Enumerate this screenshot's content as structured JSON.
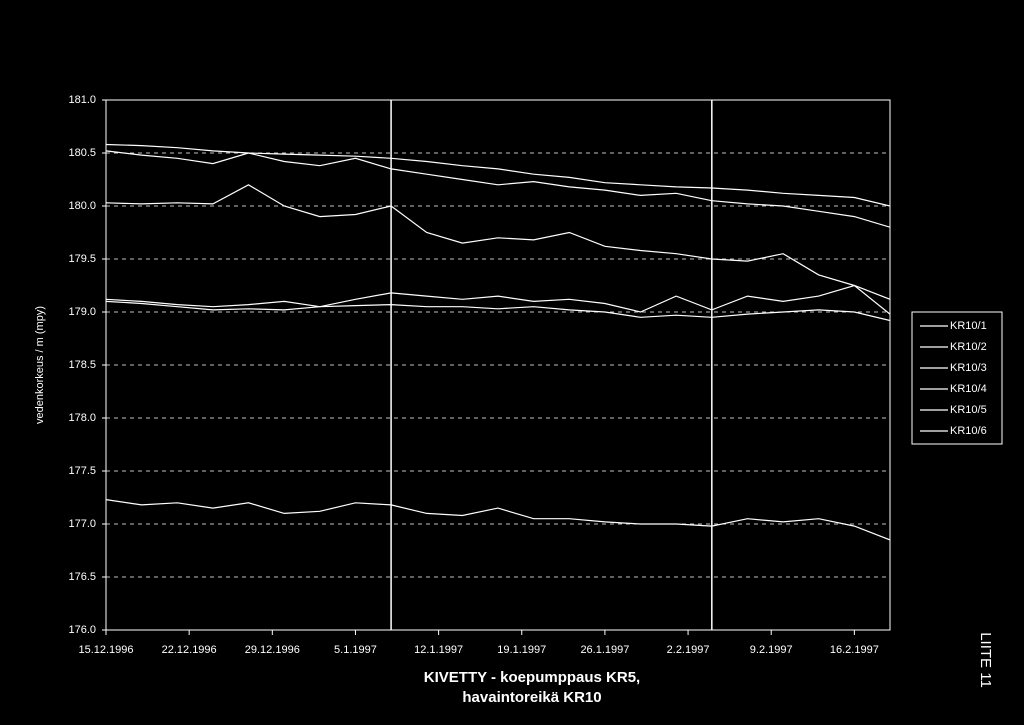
{
  "chart_data": {
    "type": "line",
    "title": "KIVETTY - koepumppaus KR5,",
    "subtitle": "havaintoreikä KR10",
    "y_label": "vedenkorkeus / m (mpy)",
    "side_label": "LIITE 11",
    "x": [
      "1996-12-15",
      "1996-12-18",
      "1996-12-21",
      "1996-12-24",
      "1996-12-27",
      "1996-12-30",
      "1997-01-02",
      "1997-01-05",
      "1997-01-08",
      "1997-01-11",
      "1997-01-14",
      "1997-01-17",
      "1997-01-20",
      "1997-01-23",
      "1997-01-26",
      "1997-01-29",
      "1997-02-01",
      "1997-02-04",
      "1997-02-07",
      "1997-02-10",
      "1997-02-13",
      "1997-02-16",
      "1997-02-19"
    ],
    "xlim": [
      "1996-12-15",
      "1997-02-19"
    ],
    "xticks": [
      {
        "value": "1996-12-15",
        "label": "15.12.1996"
      },
      {
        "value": "1996-12-22",
        "label": "22.12.1996"
      },
      {
        "value": "1996-12-29",
        "label": "29.12.1996"
      },
      {
        "value": "1997-01-05",
        "label": "5.1.1997"
      },
      {
        "value": "1997-01-12",
        "label": "12.1.1997"
      },
      {
        "value": "1997-01-19",
        "label": "19.1.1997"
      },
      {
        "value": "1997-01-26",
        "label": "26.1.1997"
      },
      {
        "value": "1997-02-02",
        "label": "2.2.1997"
      },
      {
        "value": "1997-02-09",
        "label": "9.2.1997"
      },
      {
        "value": "1997-02-16",
        "label": "16.2.1997"
      }
    ],
    "vlines": [
      "1997-01-08",
      "1997-02-04"
    ],
    "ylim": [
      176,
      181
    ],
    "yticks": [
      {
        "value": 176,
        "label": "176.0"
      },
      {
        "value": 176.5,
        "label": "176.5"
      },
      {
        "value": 177,
        "label": "177.0"
      },
      {
        "value": 177.5,
        "label": "177.5"
      },
      {
        "value": 178,
        "label": "178.0"
      },
      {
        "value": 178.5,
        "label": "178.5"
      },
      {
        "value": 179,
        "label": "179.0"
      },
      {
        "value": 179.5,
        "label": "179.5"
      },
      {
        "value": 180,
        "label": "180.0"
      },
      {
        "value": 180.5,
        "label": "180.5"
      },
      {
        "value": 181,
        "label": "181.0"
      }
    ],
    "grid": true,
    "legend": "right",
    "series": [
      {
        "name": "KR10/1",
        "color": "#ffffff",
        "values": [
          180.58,
          180.57,
          180.55,
          180.52,
          180.5,
          180.49,
          180.48,
          180.47,
          180.45,
          180.42,
          180.38,
          180.35,
          180.3,
          180.27,
          180.22,
          180.2,
          180.18,
          180.17,
          180.15,
          180.12,
          180.1,
          180.08,
          180.0
        ]
      },
      {
        "name": "KR10/2",
        "color": "#ffffff",
        "values": [
          180.52,
          180.48,
          180.45,
          180.4,
          180.5,
          180.42,
          180.38,
          180.45,
          180.35,
          180.3,
          180.25,
          180.2,
          180.23,
          180.18,
          180.15,
          180.1,
          180.12,
          180.05,
          180.02,
          180.0,
          179.95,
          179.9,
          179.8
        ]
      },
      {
        "name": "KR10/3",
        "color": "#ffffff",
        "values": [
          180.03,
          180.02,
          180.03,
          180.02,
          180.2,
          180.0,
          179.9,
          179.92,
          180.0,
          179.75,
          179.65,
          179.7,
          179.68,
          179.75,
          179.62,
          179.58,
          179.55,
          179.5,
          179.48,
          179.55,
          179.35,
          179.25,
          179.12
        ]
      },
      {
        "name": "KR10/4",
        "color": "#ffffff",
        "values": [
          179.12,
          179.1,
          179.07,
          179.05,
          179.07,
          179.1,
          179.05,
          179.12,
          179.18,
          179.15,
          179.12,
          179.15,
          179.1,
          179.12,
          179.08,
          179.0,
          179.15,
          179.02,
          179.15,
          179.1,
          179.15,
          179.25,
          178.98
        ]
      },
      {
        "name": "KR10/5",
        "color": "#ffffff",
        "values": [
          179.1,
          179.08,
          179.05,
          179.02,
          179.03,
          179.02,
          179.05,
          179.06,
          179.07,
          179.05,
          179.05,
          179.03,
          179.05,
          179.02,
          179.0,
          178.95,
          178.97,
          178.95,
          178.98,
          179.0,
          179.02,
          179.0,
          178.92
        ]
      },
      {
        "name": "KR10/6",
        "color": "#ffffff",
        "values": [
          177.23,
          177.18,
          177.2,
          177.15,
          177.2,
          177.1,
          177.12,
          177.2,
          177.18,
          177.1,
          177.08,
          177.15,
          177.05,
          177.05,
          177.02,
          177.0,
          177.0,
          176.98,
          177.05,
          177.02,
          177.05,
          176.98,
          176.85
        ]
      }
    ]
  }
}
